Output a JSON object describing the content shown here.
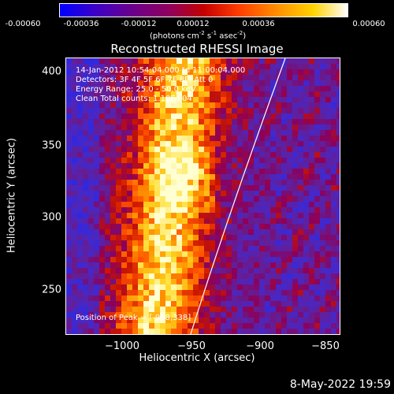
{
  "colorbar": {
    "ticks": [
      "-0.00060",
      "-0.00036",
      "-0.00012",
      "0.00012",
      "0.00036",
      "0.00060"
    ],
    "units_main": "(photons cm",
    "units_sup1": "-2",
    "units_mid": " s",
    "units_sup2": "-1",
    "units_end": " asec",
    "units_sup3": "-2",
    "units_close": ")"
  },
  "plot": {
    "title": "Reconstructed RHESSI Image",
    "annotations": [
      "14-Jan-2012 10:54:04.000 to 11:00:04.000",
      "Detectors: 3F 4F 5F 6F 7F 8F, Att 0",
      "Energy Range: 25.0 - 50.0 keV",
      "Clean     Total counts: 1.10E+04"
    ],
    "peak_label": "Position of Peak = [-958,338]",
    "xlabel": "Heliocentric X (arcsec)",
    "ylabel": "Heliocentric Y (arcsec)",
    "xticks": [
      "−1000",
      "−950",
      "−900",
      "−850"
    ],
    "yticks": [
      "400",
      "350",
      "300",
      "250"
    ]
  },
  "timestamp": "8-May-2022 19:59"
}
